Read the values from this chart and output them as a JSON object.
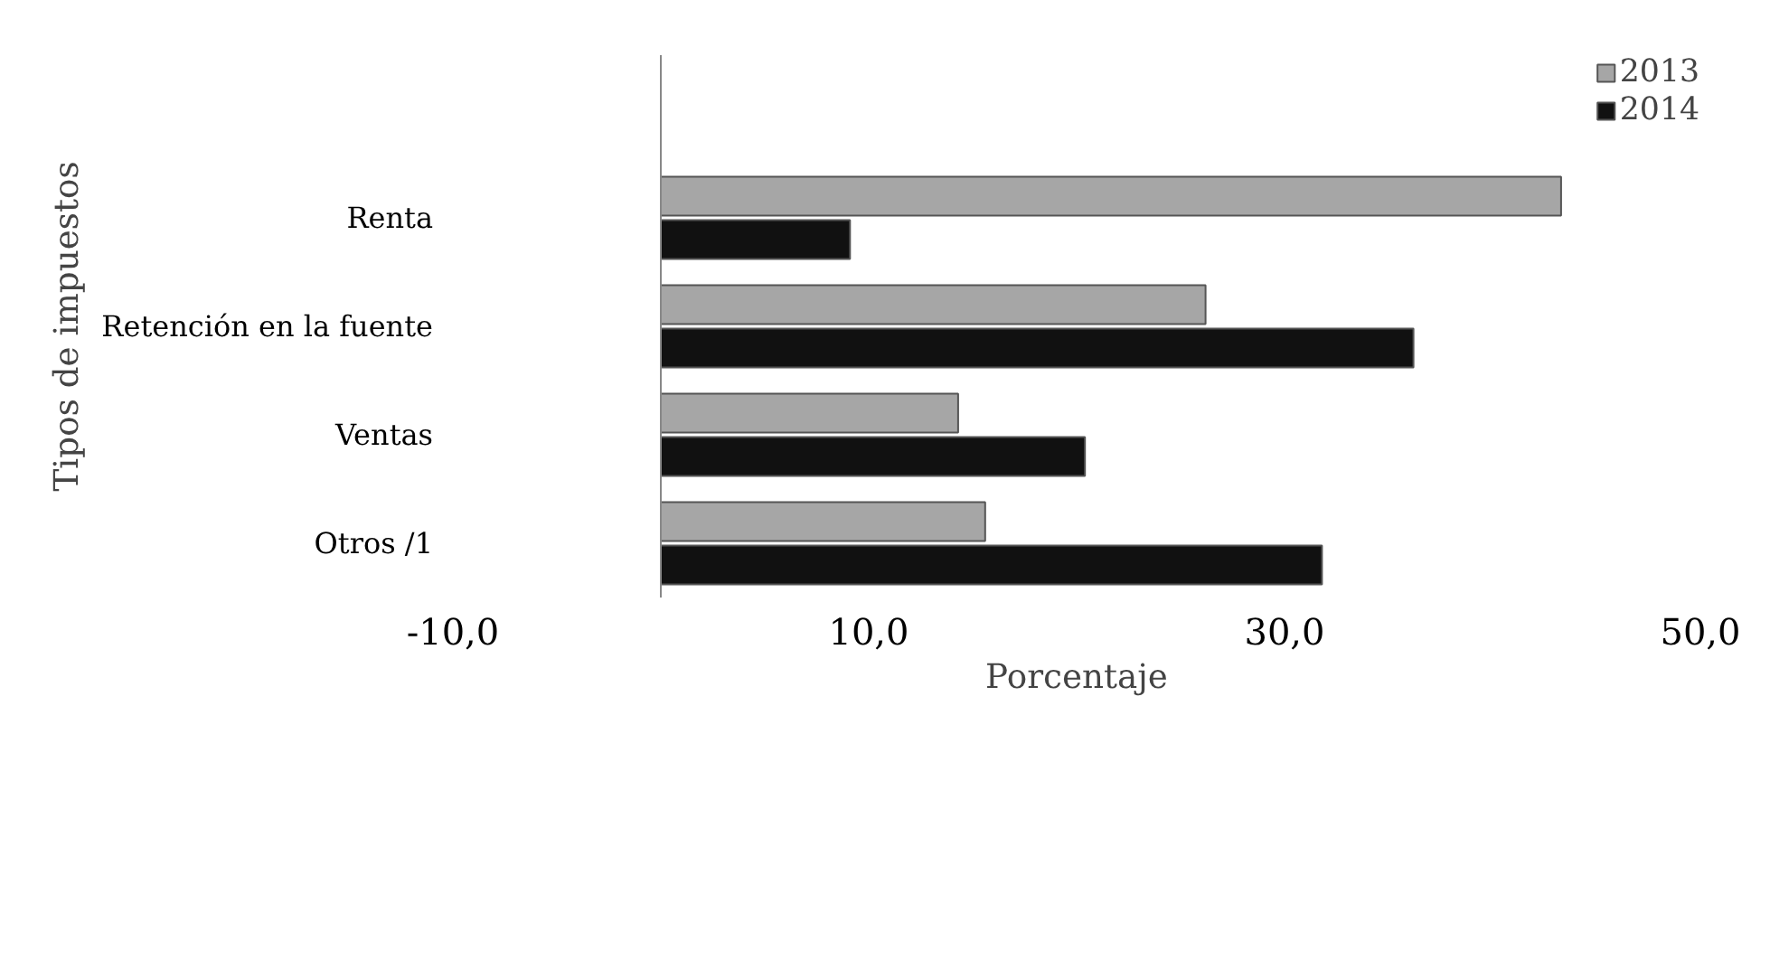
{
  "chart_data": {
    "type": "bar",
    "orientation": "horizontal",
    "xlabel": "Porcentaje",
    "ylabel": "Tipos de impuestos",
    "categories": [
      null,
      "Renta",
      "Retención en la fuente",
      "Ventas",
      "Otros /1"
    ],
    "series": [
      {
        "name": "2013",
        "color": "#a6a6a6",
        "values": [
          null,
          43.3,
          26.2,
          14.3,
          15.6
        ]
      },
      {
        "name": "2014",
        "color": "#111111",
        "values": [
          null,
          9.1,
          36.2,
          20.4,
          31.8
        ]
      }
    ],
    "xlim": [
      -10,
      50
    ],
    "xticks": [
      {
        "value": -10,
        "label": "-10,0"
      },
      {
        "value": 10,
        "label": "10,0"
      },
      {
        "value": 30,
        "label": "30,0"
      },
      {
        "value": 50,
        "label": "50,0"
      }
    ],
    "grid": false,
    "legend": "top right"
  }
}
